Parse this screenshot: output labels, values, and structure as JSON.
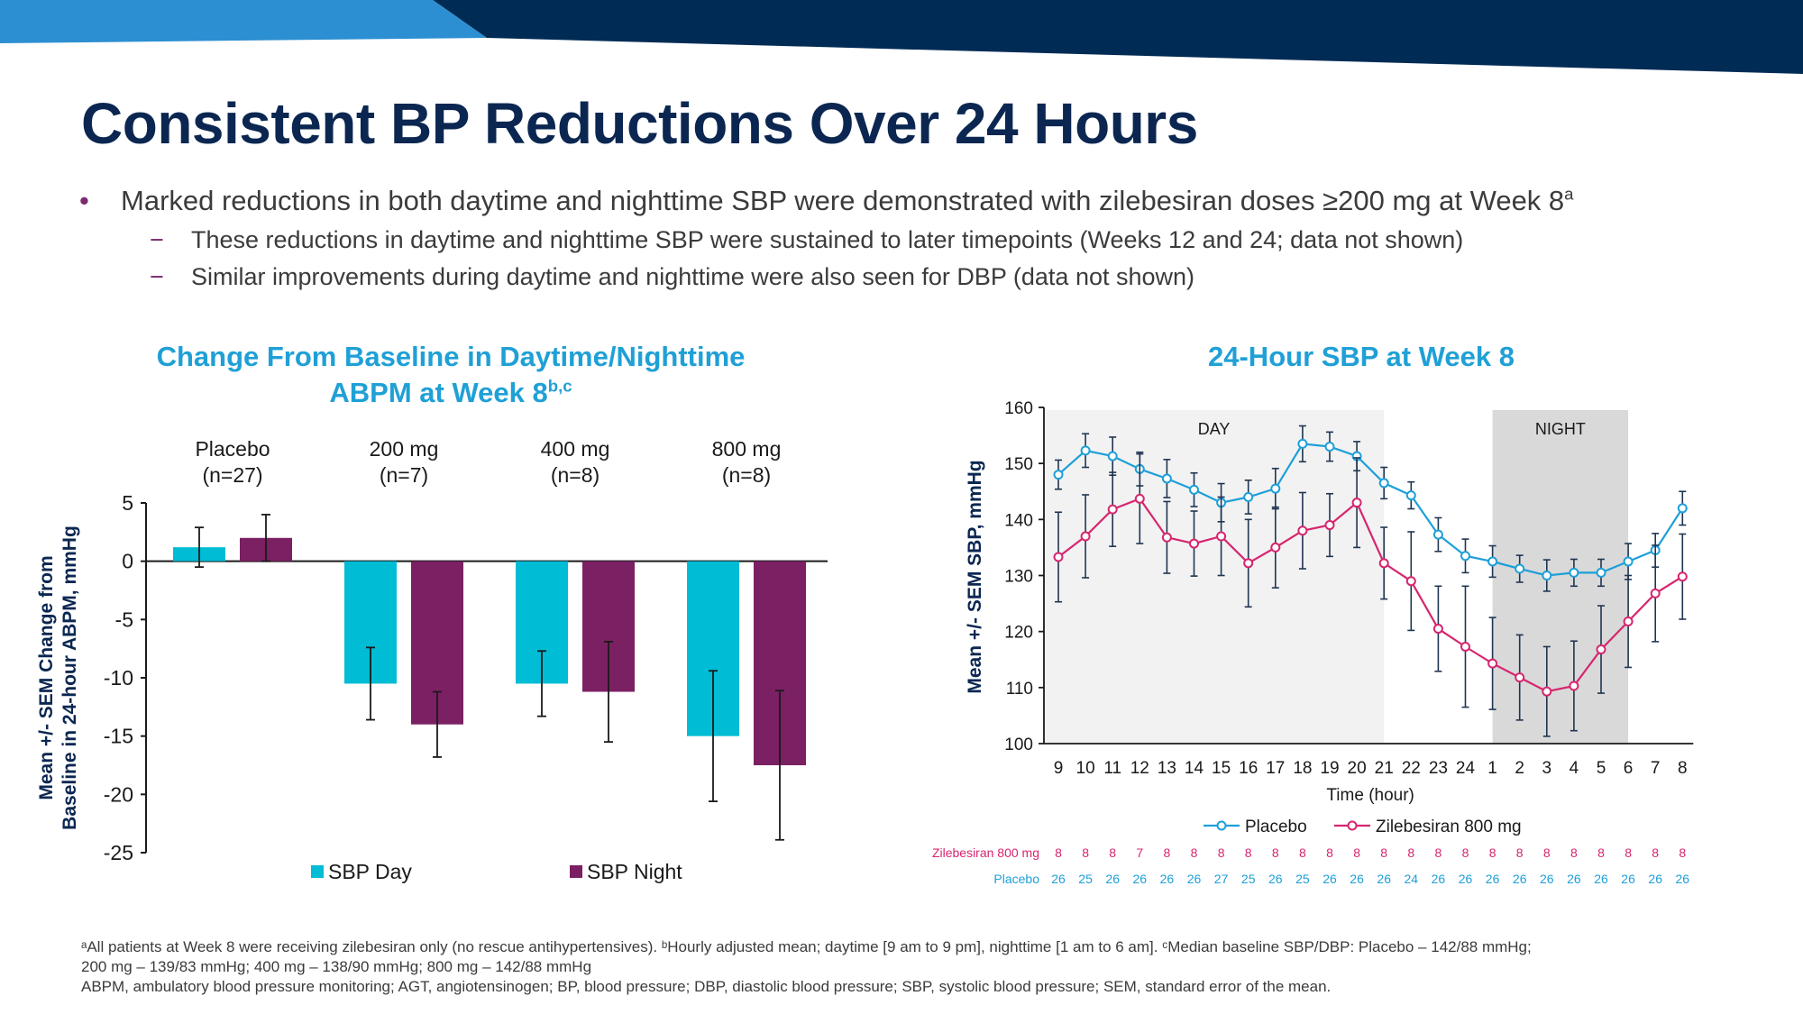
{
  "title": "Consistent BP Reductions Over 24 Hours",
  "bullets": {
    "main": "Marked reductions in both daytime and nighttime SBP were demonstrated with zilebesiran doses ≥200 mg at Week 8",
    "main_sup": "a",
    "sub": [
      "These reductions in daytime and nighttime SBP were sustained to later timepoints (Weeks 12 and 24; data not shown)",
      "Similar improvements during daytime and nighttime were also seen for DBP (data not shown)"
    ]
  },
  "colors": {
    "banner_dark": "#002b55",
    "banner_light": "#2c8fd1",
    "title": "#0b2751",
    "chart_title": "#1fa0d6",
    "bullet_marker": "#7b2a6d",
    "sbp_day": "#00bcd4",
    "sbp_night": "#7b2063",
    "placebo_line": "#1e9fd8",
    "zilebesiran_line": "#d6266f",
    "day_shade": "#f2f2f2",
    "night_shade": "#d9d9d9"
  },
  "chart_data": [
    {
      "type": "bar",
      "title_line1": "Change From Baseline in Daytime/Nighttime",
      "title_line2": "ABPM at Week 8",
      "title_sup": "b,c",
      "ylabel_line1": "Mean +/- SEM Change from",
      "ylabel_line2": "Baseline in 24-hour ABPM, mmHg",
      "ylim": [
        -25,
        5
      ],
      "yticks": [
        5,
        0,
        -5,
        -10,
        -15,
        -20,
        -25
      ],
      "grid": false,
      "legend_position": "bottom",
      "categories": [
        {
          "name": "Placebo",
          "n": "(n=27)"
        },
        {
          "name": "200 mg",
          "n": "(n=7)"
        },
        {
          "name": "400 mg",
          "n": "(n=8)"
        },
        {
          "name": "800 mg",
          "n": "(n=8)"
        }
      ],
      "series": [
        {
          "name": "SBP Day",
          "color": "#00bcd4",
          "values": [
            1.2,
            -10.5,
            -10.5,
            -15.0
          ],
          "sem": [
            1.7,
            3.1,
            2.8,
            5.6
          ]
        },
        {
          "name": "SBP Night",
          "color": "#7b2063",
          "values": [
            2.0,
            -14.0,
            -11.2,
            -17.5
          ],
          "sem": [
            2.0,
            2.8,
            4.3,
            6.4
          ]
        }
      ]
    },
    {
      "type": "line",
      "title": "24-Hour SBP at Week 8",
      "ylabel": "Mean +/- SEM SBP, mmHg",
      "xlabel": "Time (hour)",
      "ylim": [
        100,
        160
      ],
      "yticks": [
        160,
        150,
        140,
        130,
        120,
        110,
        100
      ],
      "grid": false,
      "legend_position": "bottom",
      "x": [
        "9",
        "10",
        "11",
        "12",
        "13",
        "14",
        "15",
        "16",
        "17",
        "18",
        "19",
        "20",
        "21",
        "22",
        "23",
        "24",
        "1",
        "2",
        "3",
        "4",
        "5",
        "6",
        "7",
        "8"
      ],
      "shaded_regions": [
        {
          "label": "DAY",
          "from_hour": "9",
          "to_hour": "21"
        },
        {
          "label": "NIGHT",
          "from_hour": "1",
          "to_hour": "6"
        }
      ],
      "series": [
        {
          "name": "Placebo",
          "color": "#1e9fd8",
          "values": [
            148,
            152.3,
            151.3,
            149,
            147.3,
            145.3,
            143,
            144,
            145.5,
            153.5,
            153,
            151.3,
            146.5,
            144.3,
            137.3,
            133.5,
            132.5,
            131.2,
            130,
            130.5,
            130.5,
            132.5,
            134.5,
            142
          ],
          "sem": [
            2.6,
            3.0,
            3.4,
            3.0,
            3.4,
            3.0,
            3.4,
            3.0,
            3.6,
            3.2,
            2.6,
            2.6,
            2.8,
            2.4,
            3.0,
            3.0,
            2.8,
            2.4,
            2.8,
            2.4,
            2.4,
            3.2,
            3.0,
            3.0
          ]
        },
        {
          "name": "Zilebesiran 800 mg",
          "color": "#d6266f",
          "values": [
            133.3,
            137,
            141.8,
            143.7,
            136.8,
            135.7,
            137,
            132.2,
            135,
            138,
            139,
            143,
            132.2,
            129,
            120.5,
            117.3,
            114.3,
            111.8,
            109.3,
            110.3,
            116.8,
            121.8,
            126.8,
            129.8
          ],
          "sem": [
            8.0,
            7.4,
            6.6,
            8.0,
            6.4,
            5.8,
            7.0,
            7.8,
            7.2,
            6.8,
            5.6,
            8.0,
            6.4,
            8.8,
            7.6,
            10.8,
            8.2,
            7.6,
            8.0,
            8.0,
            7.8,
            8.2,
            8.6,
            7.6
          ]
        }
      ],
      "n_table": [
        {
          "label": "Zilebesiran 800 mg",
          "color": "#d6266f",
          "values": [
            "8",
            "8",
            "8",
            "7",
            "8",
            "8",
            "8",
            "8",
            "8",
            "8",
            "8",
            "8",
            "8",
            "8",
            "8",
            "8",
            "8",
            "8",
            "8",
            "8",
            "8",
            "8",
            "8",
            "8"
          ]
        },
        {
          "label": "Placebo",
          "color": "#1e9fd8",
          "values": [
            "26",
            "25",
            "26",
            "26",
            "26",
            "26",
            "27",
            "25",
            "26",
            "25",
            "26",
            "26",
            "26",
            "24",
            "26",
            "26",
            "26",
            "26",
            "26",
            "26",
            "26",
            "26",
            "26",
            "26"
          ]
        }
      ]
    }
  ],
  "footnotes": [
    "ᵃAll patients at Week 8 were receiving zilebesiran only (no rescue antihypertensives). ᵇHourly adjusted mean; daytime [9 am to 9 pm], nighttime [1 am to 6 am]. ᶜMedian baseline SBP/DBP: Placebo – 142/88 mmHg;",
    "200 mg – 139/83 mmHg; 400 mg – 138/90 mmHg; 800 mg – 142/88 mmHg",
    "ABPM, ambulatory blood pressure monitoring; AGT, angiotensinogen; BP, blood pressure; DBP, diastolic blood pressure; SBP, systolic blood pressure; SEM, standard error of the mean."
  ]
}
